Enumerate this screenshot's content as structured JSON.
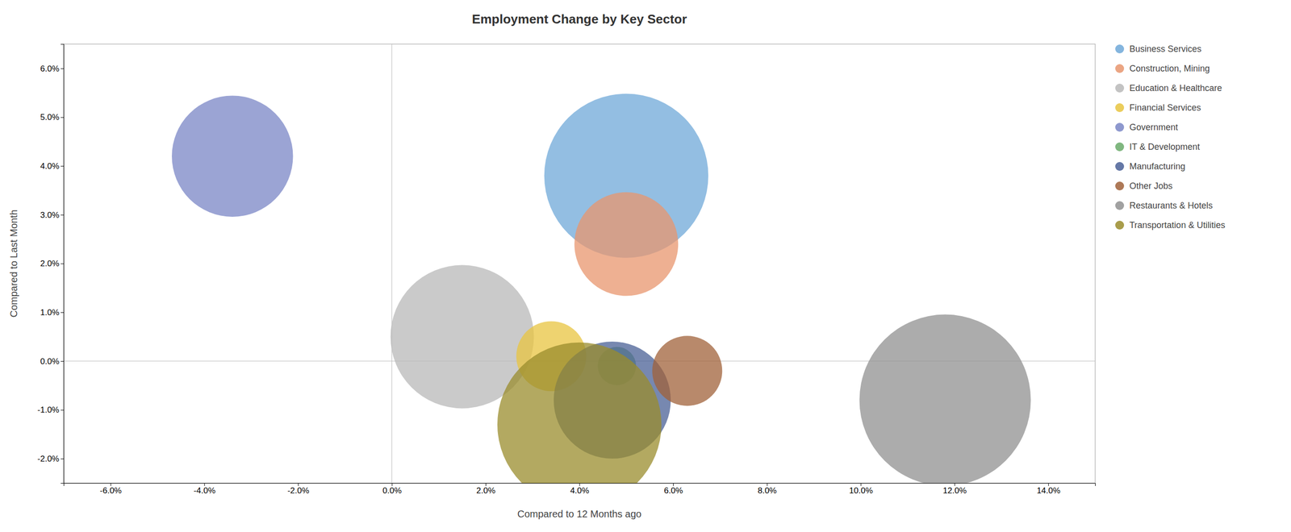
{
  "chart_data": {
    "type": "scatter",
    "title": "Employment Change by Key Sector",
    "x_label": "Compared to 12 Months ago",
    "y_label": "Compared to Last Month",
    "xlim": [
      -0.07,
      0.15
    ],
    "ylim": [
      -0.025,
      0.065
    ],
    "xticks": [
      {
        "value": -0.06,
        "label": "-6.0%"
      },
      {
        "value": -0.04,
        "label": "-4.0%"
      },
      {
        "value": -0.02,
        "label": "-2.0%"
      },
      {
        "value": 0.0,
        "label": "0.0%"
      },
      {
        "value": 0.02,
        "label": "2.0%"
      },
      {
        "value": 0.04,
        "label": "4.0%"
      },
      {
        "value": 0.06,
        "label": "6.0%"
      },
      {
        "value": 0.08,
        "label": "8.0%"
      },
      {
        "value": 0.1,
        "label": "10.0%"
      },
      {
        "value": 0.12,
        "label": "12.0%"
      },
      {
        "value": 0.14,
        "label": "14.0%"
      }
    ],
    "yticks": [
      {
        "value": -0.02,
        "label": "-2.0%"
      },
      {
        "value": -0.01,
        "label": "-1.0%"
      },
      {
        "value": 0.0,
        "label": "0.0%"
      },
      {
        "value": 0.01,
        "label": "1.0%"
      },
      {
        "value": 0.02,
        "label": "2.0%"
      },
      {
        "value": 0.03,
        "label": "3.0%"
      },
      {
        "value": 0.04,
        "label": "4.0%"
      },
      {
        "value": 0.05,
        "label": "5.0%"
      },
      {
        "value": 0.06,
        "label": "6.0%"
      }
    ],
    "grid": false,
    "legend": "right",
    "series": [
      {
        "name": "Business Services",
        "color": "#6fa8d8",
        "x": [
          0.05
        ],
        "values": [
          0.038
        ],
        "sizes": [
          55000
        ]
      },
      {
        "name": "Construction, Mining",
        "color": "#e8956d",
        "x": [
          0.05
        ],
        "values": [
          0.024
        ],
        "sizes": [
          22000
        ]
      },
      {
        "name": "Education & Healthcare",
        "color": "#b8b8b8",
        "x": [
          0.015
        ],
        "values": [
          0.005
        ],
        "sizes": [
          42000
        ]
      },
      {
        "name": "Financial Services",
        "color": "#e8c440",
        "x": [
          0.034
        ],
        "values": [
          0.001
        ],
        "sizes": [
          10000
        ]
      },
      {
        "name": "Government",
        "color": "#7a86c6",
        "x": [
          -0.034
        ],
        "values": [
          0.042
        ],
        "sizes": [
          30000
        ]
      },
      {
        "name": "IT & Development",
        "color": "#6aaa6a",
        "x": [
          0.048
        ],
        "values": [
          -0.001
        ],
        "sizes": [
          3000
        ]
      },
      {
        "name": "Manufacturing",
        "color": "#4a6096",
        "x": [
          0.047
        ],
        "values": [
          -0.008
        ],
        "sizes": [
          28000
        ]
      },
      {
        "name": "Other Jobs",
        "color": "#a0623a",
        "x": [
          0.063
        ],
        "values": [
          -0.002
        ],
        "sizes": [
          10000
        ]
      },
      {
        "name": "Restaurants & Hotels",
        "color": "#909090",
        "x": [
          0.118
        ],
        "values": [
          -0.008
        ],
        "sizes": [
          60000
        ]
      },
      {
        "name": "Transportation & Utilities",
        "color": "#9a8c2c",
        "x": [
          0.04
        ],
        "values": [
          -0.013
        ],
        "sizes": [
          55000
        ]
      }
    ]
  }
}
